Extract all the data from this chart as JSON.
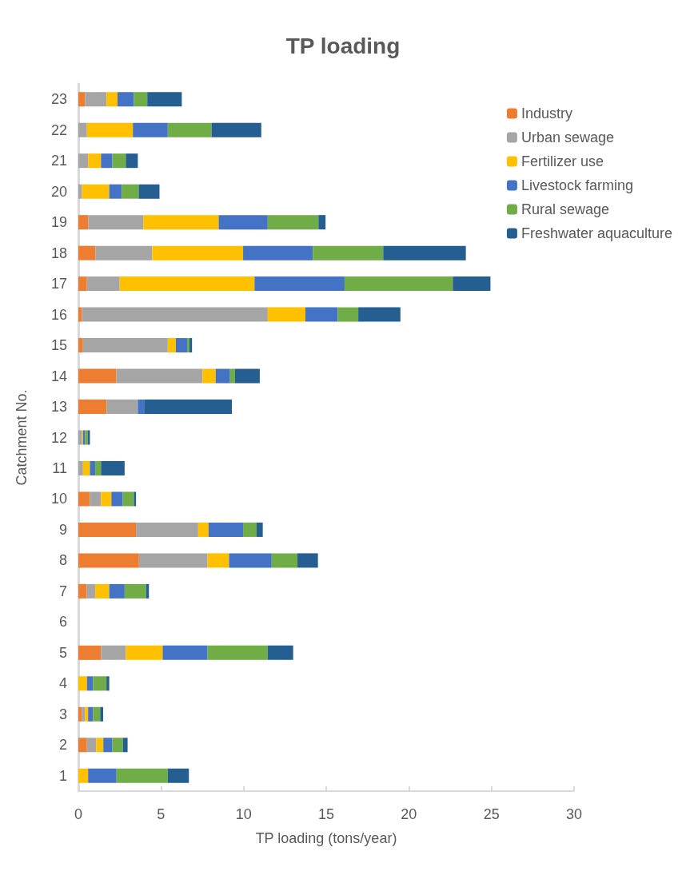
{
  "chart_data": {
    "type": "bar",
    "title": "TP loading",
    "xlabel": "TP loading (tons/year)",
    "ylabel": "Catchment No.",
    "orientation": "horizontal",
    "stacked": true,
    "categories": [
      "23",
      "22",
      "21",
      "20",
      "19",
      "18",
      "17",
      "16",
      "15",
      "14",
      "13",
      "12",
      "11",
      "10",
      "9",
      "8",
      "7",
      "6",
      "5",
      "4",
      "3",
      "2",
      "1"
    ],
    "series": [
      {
        "name": "Industry",
        "color": "#ed7d31",
        "values": [
          0.41,
          0,
          0,
          0,
          0.6,
          1.04,
          0.52,
          0.22,
          0.28,
          2.3,
          1.71,
          0,
          0,
          0.7,
          3.49,
          3.67,
          0.51,
          null,
          1.37,
          0,
          0.22,
          0.52,
          0
        ]
      },
      {
        "name": "Urban sewage",
        "color": "#a5a5a5",
        "values": [
          1.29,
          0.52,
          0.59,
          0.22,
          3.33,
          3.43,
          1.98,
          11.24,
          5.13,
          5.21,
          1.89,
          0.22,
          0.28,
          0.67,
          3.76,
          4.15,
          0.51,
          null,
          1.5,
          0,
          0.18,
          0.56,
          0
        ]
      },
      {
        "name": "Fertilizer use",
        "color": "#ffc000",
        "values": [
          0.67,
          2.78,
          0.78,
          1.65,
          4.56,
          5.5,
          8.16,
          2.28,
          0.49,
          0.8,
          0,
          0.06,
          0.42,
          0.63,
          0.63,
          1.3,
          0.85,
          null,
          2.23,
          0.52,
          0.19,
          0.43,
          0.59
        ]
      },
      {
        "name": "Livestock farming",
        "color": "#4472c4",
        "values": [
          0.99,
          2.11,
          0.69,
          0.76,
          2.97,
          4.22,
          5.45,
          1.95,
          0.68,
          0.87,
          0.38,
          0.12,
          0.32,
          0.69,
          2.09,
          2.58,
          0.93,
          null,
          2.72,
          0.37,
          0.3,
          0.55,
          1.72
        ]
      },
      {
        "name": "Rural sewage",
        "color": "#70ad47",
        "values": [
          0.81,
          2.65,
          0.81,
          1.02,
          3.07,
          4.26,
          6.55,
          1.25,
          0.13,
          0.3,
          0,
          0.17,
          0.35,
          0.67,
          0.82,
          1.56,
          1.3,
          null,
          3.64,
          0.81,
          0.43,
          0.63,
          3.1
        ]
      },
      {
        "name": "Freshwater aquaculture",
        "color": "#255e91",
        "values": [
          2.09,
          3.01,
          0.73,
          1.26,
          0.43,
          5.0,
          2.28,
          2.55,
          0.17,
          1.5,
          5.31,
          0.13,
          1.43,
          0.13,
          0.37,
          1.24,
          0.17,
          null,
          1.54,
          0.17,
          0.18,
          0.29,
          1.28
        ]
      }
    ],
    "xlim": [
      0,
      30
    ],
    "xticks": [
      0,
      5,
      10,
      15,
      20,
      25,
      30
    ],
    "grid": false,
    "legend": "top right"
  }
}
